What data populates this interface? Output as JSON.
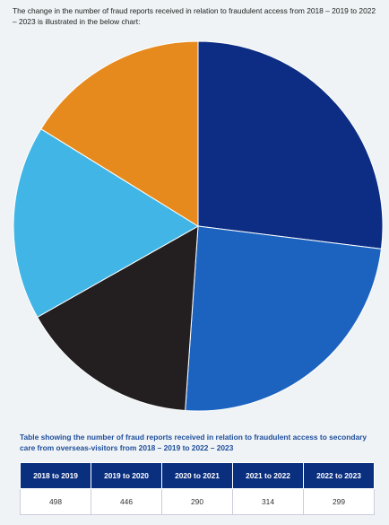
{
  "intro": "The change in the number of fraud reports received in relation to fraudulent access from 2018 – 2019 to 2022 – 2023 is illustrated in the below chart:",
  "chart_data": {
    "type": "pie",
    "categories": [
      "2018 to 2019",
      "2019 to 2020",
      "2020 to 2021",
      "2021 to 2022",
      "2022 to 2023"
    ],
    "values": [
      498,
      446,
      290,
      314,
      299
    ],
    "colors": [
      "#0c2d83",
      "#1c63bf",
      "#231f20",
      "#41b6e6",
      "#e68a1e"
    ]
  },
  "table": {
    "caption": "Table showing the number of fraud reports received in relation to fraudulent access to secondary care from overseas-visitors from 2018 – 2019 to 2022 – 2023"
  }
}
